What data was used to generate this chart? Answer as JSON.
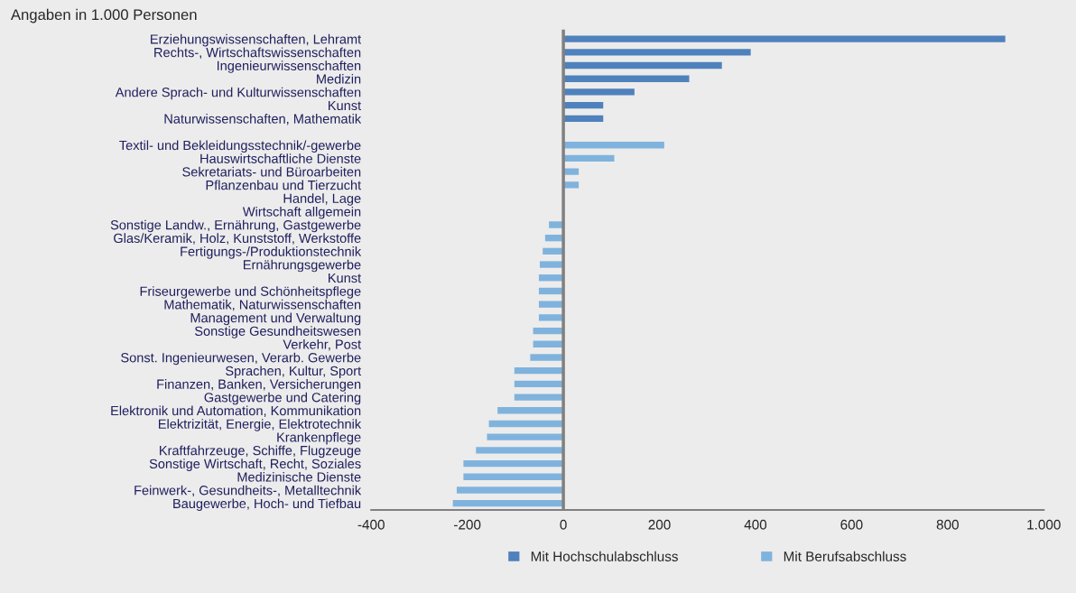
{
  "chart_data": {
    "type": "bar",
    "orientation": "horizontal",
    "title": "Angaben in 1.000 Personen",
    "categories": [
      "Erziehungswissenschaften, Lehramt",
      "Rechts-, Wirtschaftswissenschaften",
      "Ingenieurwissenschaften",
      "Medizin",
      "Andere Sprach- und Kulturwissenschaften",
      "Kunst",
      "Naturwissenschaften, Mathematik",
      null,
      "Textil- und Bekleidungsstechnik/-gewerbe",
      "Hauswirtschaftliche Dienste",
      "Sekretariats- und Büroarbeiten",
      "Pflanzenbau und Tierzucht",
      "Handel, Lage",
      "Wirtschaft allgemein",
      "Sonstige Landw., Ernährung, Gastgewerbe",
      "Glas/Keramik, Holz, Kunststoff, Werkstoffe",
      "Fertigungs-/Produktionstechnik",
      "Ernährungsgewerbe",
      "Kunst",
      "Friseurgewerbe und Schönheitspflege",
      "Mathematik, Naturwissenschaften",
      "Management und Verwaltung",
      "Sonstige Gesundheitswesen",
      "Verkehr, Post",
      "Sonst. Ingenieurwesen, Verarb. Gewerbe",
      "Sprachen, Kultur, Sport",
      "Finanzen, Banken, Versicherungen",
      "Gastgewerbe und Catering",
      "Elektronik und Automation, Kommunikation",
      "Elektrizität, Energie, Elektrotechnik",
      "Krankenpflege",
      "Kraftfahrzeuge, Schiffe, Flugzeuge",
      "Sonstige Wirtschaft, Recht, Soziales",
      "Medizinische Dienste",
      "Feinwerk-, Gesundheits-, Metalltechnik",
      "Baugewerbe, Hoch- und Tiefbau"
    ],
    "series": [
      {
        "name": "Mit Hochschulabschluss",
        "color": "#4f81bd",
        "values": [
          920,
          390,
          330,
          262,
          148,
          83,
          83,
          null,
          null,
          null,
          null,
          null,
          null,
          null,
          null,
          null,
          null,
          null,
          null,
          null,
          null,
          null,
          null,
          null,
          null,
          null,
          null,
          null,
          null,
          null,
          null,
          null,
          null,
          null,
          null,
          null
        ]
      },
      {
        "name": "Mit Berufsabschluss",
        "color": "#7fb3dd",
        "values": [
          null,
          null,
          null,
          null,
          null,
          null,
          null,
          null,
          210,
          106,
          32,
          32,
          0,
          0,
          -30,
          -38,
          -43,
          -49,
          -51,
          -51,
          -51,
          -51,
          -63,
          -63,
          -69,
          -102,
          -102,
          -102,
          -137,
          -155,
          -159,
          -182,
          -208,
          -208,
          -222,
          -230
        ]
      }
    ],
    "xlim": [
      -400,
      1000
    ],
    "xticks": [
      {
        "value": -400,
        "label": "-400"
      },
      {
        "value": -200,
        "label": "-200"
      },
      {
        "value": 0,
        "label": "0"
      },
      {
        "value": 200,
        "label": "200"
      },
      {
        "value": 400,
        "label": "400"
      },
      {
        "value": 600,
        "label": "600"
      },
      {
        "value": 800,
        "label": "800"
      },
      {
        "value": 1000,
        "label": "1.000"
      }
    ],
    "ref_lines": [
      {
        "axis": "x",
        "value": 0,
        "color": "#808080"
      }
    ],
    "legend": "bottom",
    "grid": false
  }
}
